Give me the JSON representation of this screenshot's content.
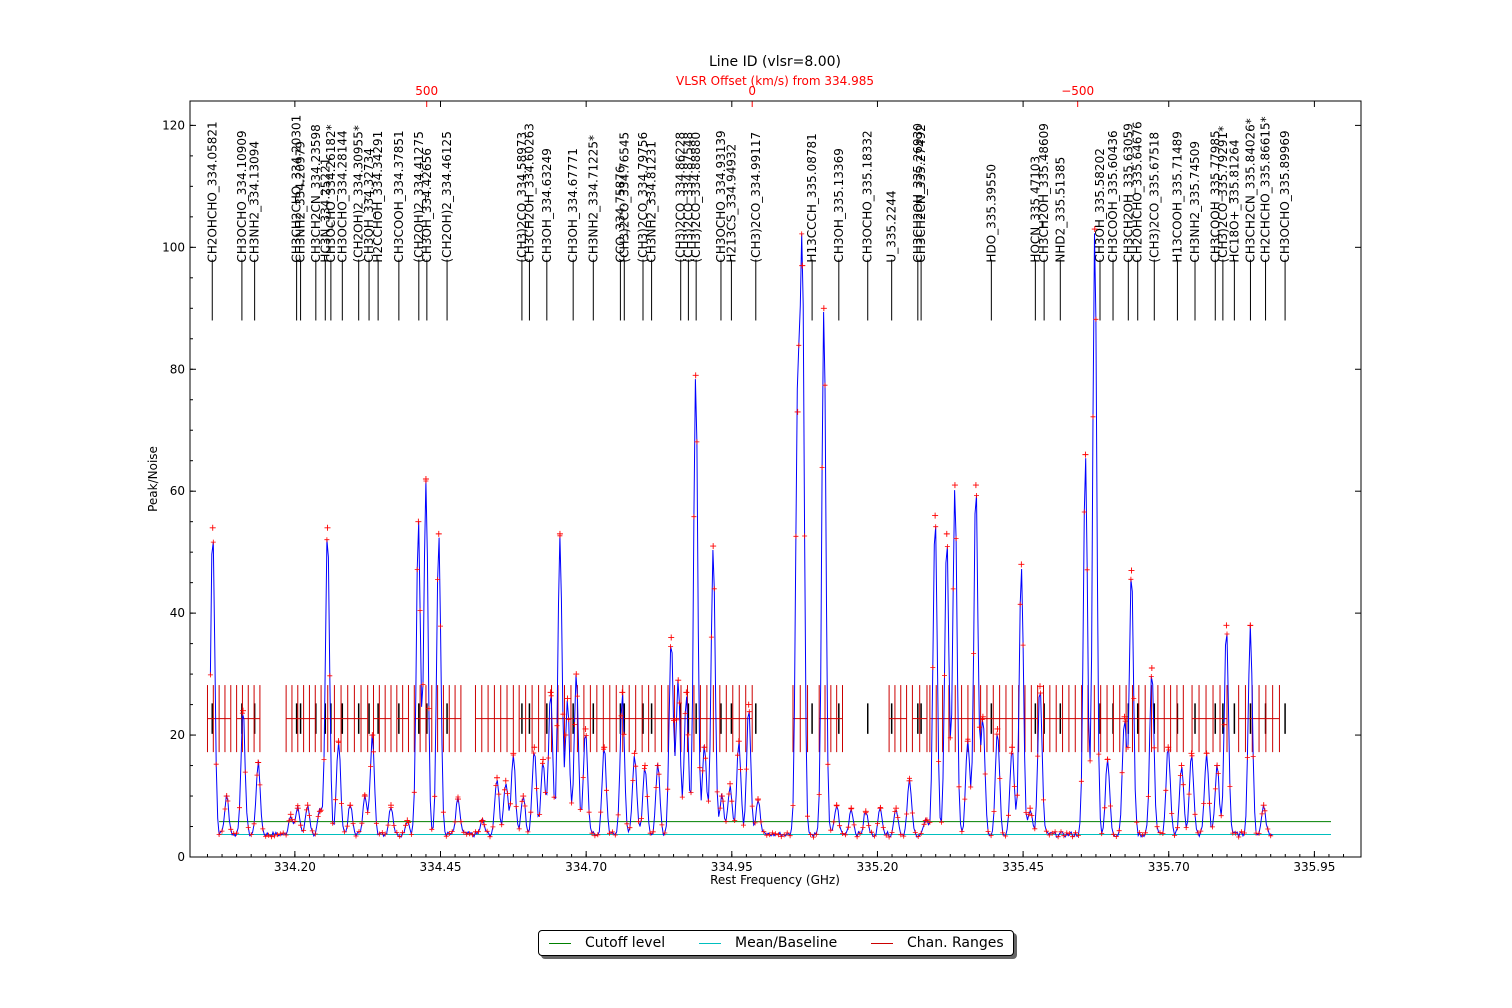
{
  "chart_data": {
    "type": "line",
    "title": "Line ID (vlsr=8.00)",
    "top_axis_label": "VLSR Offset (km/s) from 334.985",
    "top_axis_ticks": [
      500,
      0,
      -500
    ],
    "top_axis_tick_labels": [
      "500",
      "0",
      "−500"
    ],
    "xlabel": "Rest Frequency (GHz)",
    "ylabel": "Peak/Noise",
    "xlim": [
      334.02,
      336.03
    ],
    "ylim": [
      0,
      124
    ],
    "x_ticks": [
      334.2,
      334.45,
      334.7,
      334.95,
      335.2,
      335.45,
      335.7,
      335.95
    ],
    "x_tick_labels": [
      "334.20",
      "334.45",
      "334.70",
      "334.95",
      "335.20",
      "335.45",
      "335.70",
      "335.95"
    ],
    "y_ticks": [
      0,
      20,
      40,
      60,
      80,
      100,
      120
    ],
    "y_tick_labels": [
      "0",
      "20",
      "40",
      "60",
      "80",
      "100",
      "120"
    ],
    "colors": {
      "spectrum": "#0000ff",
      "markers": "#ff0000",
      "cutoff": "#008000",
      "baseline": "#00bfbf",
      "ranges": "#cc0000",
      "top_axis": "#ff0000",
      "line_marks": "#000000"
    },
    "cutoff_level": 5.8,
    "baseline_level": 3.7,
    "channel_range_level": 22.7,
    "spectrum_noise_level": 3.7,
    "peaks": [
      {
        "x": 334.059,
        "y": 54
      },
      {
        "x": 334.083,
        "y": 10
      },
      {
        "x": 334.111,
        "y": 24
      },
      {
        "x": 334.137,
        "y": 15.5
      },
      {
        "x": 334.193,
        "y": 7
      },
      {
        "x": 334.205,
        "y": 8
      },
      {
        "x": 334.222,
        "y": 8.5
      },
      {
        "x": 334.243,
        "y": 7.5
      },
      {
        "x": 334.256,
        "y": 54
      },
      {
        "x": 334.275,
        "y": 19
      },
      {
        "x": 334.295,
        "y": 8.5
      },
      {
        "x": 334.32,
        "y": 10
      },
      {
        "x": 334.333,
        "y": 20
      },
      {
        "x": 334.365,
        "y": 8.5
      },
      {
        "x": 334.393,
        "y": 6
      },
      {
        "x": 334.412,
        "y": 55
      },
      {
        "x": 334.425,
        "y": 62
      },
      {
        "x": 334.447,
        "y": 53
      },
      {
        "x": 334.48,
        "y": 9.5
      },
      {
        "x": 334.522,
        "y": 6
      },
      {
        "x": 334.547,
        "y": 13
      },
      {
        "x": 334.562,
        "y": 12.5
      },
      {
        "x": 334.575,
        "y": 17
      },
      {
        "x": 334.592,
        "y": 10
      },
      {
        "x": 334.611,
        "y": 18
      },
      {
        "x": 334.626,
        "y": 16
      },
      {
        "x": 334.639,
        "y": 27
      },
      {
        "x": 334.655,
        "y": 53
      },
      {
        "x": 334.668,
        "y": 26
      },
      {
        "x": 334.683,
        "y": 30
      },
      {
        "x": 334.699,
        "y": 21
      },
      {
        "x": 334.731,
        "y": 18
      },
      {
        "x": 334.762,
        "y": 27
      },
      {
        "x": 334.783,
        "y": 17
      },
      {
        "x": 334.801,
        "y": 15
      },
      {
        "x": 334.823,
        "y": 15
      },
      {
        "x": 334.846,
        "y": 36
      },
      {
        "x": 334.858,
        "y": 29
      },
      {
        "x": 334.872,
        "y": 27
      },
      {
        "x": 334.888,
        "y": 79
      },
      {
        "x": 334.903,
        "y": 18
      },
      {
        "x": 334.918,
        "y": 51
      },
      {
        "x": 334.933,
        "y": 10
      },
      {
        "x": 334.947,
        "y": 12
      },
      {
        "x": 334.962,
        "y": 19
      },
      {
        "x": 334.979,
        "y": 25
      },
      {
        "x": 334.995,
        "y": 9.5
      },
      {
        "x": 335.063,
        "y": 73
      },
      {
        "x": 335.071,
        "y": 97
      },
      {
        "x": 335.108,
        "y": 90
      },
      {
        "x": 335.13,
        "y": 8.5
      },
      {
        "x": 335.155,
        "y": 8
      },
      {
        "x": 335.18,
        "y": 7.5
      },
      {
        "x": 335.205,
        "y": 8
      },
      {
        "x": 335.232,
        "y": 8
      },
      {
        "x": 335.255,
        "y": 12.5
      },
      {
        "x": 335.283,
        "y": 6
      },
      {
        "x": 335.299,
        "y": 56
      },
      {
        "x": 335.319,
        "y": 53
      },
      {
        "x": 335.333,
        "y": 61
      },
      {
        "x": 335.355,
        "y": 19
      },
      {
        "x": 335.369,
        "y": 61
      },
      {
        "x": 335.381,
        "y": 23
      },
      {
        "x": 335.406,
        "y": 21
      },
      {
        "x": 335.431,
        "y": 18
      },
      {
        "x": 335.447,
        "y": 48
      },
      {
        "x": 335.462,
        "y": 8
      },
      {
        "x": 335.479,
        "y": 28
      },
      {
        "x": 335.557,
        "y": 66
      },
      {
        "x": 335.573,
        "y": 103
      },
      {
        "x": 335.595,
        "y": 16
      },
      {
        "x": 335.624,
        "y": 23
      },
      {
        "x": 335.636,
        "y": 47
      },
      {
        "x": 335.671,
        "y": 31
      },
      {
        "x": 335.699,
        "y": 18
      },
      {
        "x": 335.722,
        "y": 15
      },
      {
        "x": 335.739,
        "y": 17
      },
      {
        "x": 335.765,
        "y": 17
      },
      {
        "x": 335.783,
        "y": 15
      },
      {
        "x": 335.799,
        "y": 38
      },
      {
        "x": 335.84,
        "y": 38
      },
      {
        "x": 335.863,
        "y": 8.5
      }
    ],
    "line_ids": [
      {
        "label": "CH2OHCHO_334.05821",
        "x": 334.05821
      },
      {
        "label": "CH3OCHO_334.10909",
        "x": 334.10909
      },
      {
        "label": "CH3NH2_334.13094",
        "x": 334.13094
      },
      {
        "label": "CH3CH2CHO_334.20301",
        "x": 334.20301
      },
      {
        "label": "CH3NH2_334.20979",
        "x": 334.20979
      },
      {
        "label": "CH3CH2CN_334.23598",
        "x": 334.23598
      },
      {
        "label": "HC3N_334.25221",
        "x": 334.25221
      },
      {
        "label": "CH3OCHO_334.26182*",
        "x": 334.26182
      },
      {
        "label": "CH3OCHO_334.28144",
        "x": 334.28144
      },
      {
        "label": "(CH2OH)2_334.30955*",
        "x": 334.30955
      },
      {
        "label": "CH3OH_334.32734",
        "x": 334.32734
      },
      {
        "label": "H2CCHOH_334.34291",
        "x": 334.34291
      },
      {
        "label": "CH3COOH_334.37851",
        "x": 334.37851
      },
      {
        "label": "(CH2OH)2_334.41275",
        "x": 334.41275
      },
      {
        "label": "CH3OH_334.42656",
        "x": 334.42656
      },
      {
        "label": "(CH2OH)2_334.46125",
        "x": 334.46125
      },
      {
        "label": "(CH3)2CO_334.58973",
        "x": 334.58973
      },
      {
        "label": "CH3CH2OH_334.60263",
        "x": 334.60263
      },
      {
        "label": "CH3OH_334.63249",
        "x": 334.63249
      },
      {
        "label": "CH3OH_334.67771",
        "x": 334.67771
      },
      {
        "label": "CH3NH2_334.71225*",
        "x": 334.71225
      },
      {
        "label": "CCO_334.75876",
        "x": 334.75876
      },
      {
        "label": "(CH3)2CO_334.76545",
        "x": 334.76545
      },
      {
        "label": "(CH3)2CO_334.79756",
        "x": 334.79756
      },
      {
        "label": "CH3NH2_334.81231",
        "x": 334.81231
      },
      {
        "label": "(CH3)2CO_334.86228",
        "x": 334.86228
      },
      {
        "label": "(CH3)2CO_334.87548",
        "x": 334.87548
      },
      {
        "label": "(CH3)2CO_334.88880",
        "x": 334.8888
      },
      {
        "label": "CH3OCHO_334.93139",
        "x": 334.93139
      },
      {
        "label": "H213CS_334.94932",
        "x": 334.94932
      },
      {
        "label": "(CH3)2CO_334.99117",
        "x": 334.99117
      },
      {
        "label": "H13CCCH_335.08781",
        "x": 335.08781
      },
      {
        "label": "CH3OH_335.13369",
        "x": 335.13369
      },
      {
        "label": "CH3OCHO_335.18332",
        "x": 335.18332
      },
      {
        "label": "U_335.2244",
        "x": 335.2244
      },
      {
        "label": "CH3CH2OH_335.26930",
        "x": 335.2693
      },
      {
        "label": "CH3CH2CN_335.27492",
        "x": 335.27492
      },
      {
        "label": "HDO_335.39550",
        "x": 335.3955
      },
      {
        "label": "HOCN_335.47103",
        "x": 335.47103
      },
      {
        "label": "CH3CH2OH_335.48609",
        "x": 335.48609
      },
      {
        "label": "NHD2_335.51385",
        "x": 335.51385
      },
      {
        "label": "CH3OH_335.58202",
        "x": 335.58202
      },
      {
        "label": "CH3COOH_335.60436",
        "x": 335.60436
      },
      {
        "label": "CH3CH2OH_335.63059",
        "x": 335.63059
      },
      {
        "label": "CH2OHCHO_335.64676",
        "x": 335.64676
      },
      {
        "label": "(CH3)2CO_335.67518",
        "x": 335.67518
      },
      {
        "label": "H13COOH_335.71489",
        "x": 335.71489
      },
      {
        "label": "CH3NH2_335.74509",
        "x": 335.74509
      },
      {
        "label": "CH3COOH_335.77985",
        "x": 335.77985
      },
      {
        "label": "(CH3)2CO_335.79291*",
        "x": 335.79291
      },
      {
        "label": "HC18O+_335.81264",
        "x": 335.81264
      },
      {
        "label": "CH3CH2CN_335.84026*",
        "x": 335.84026
      },
      {
        "label": "CH2CHCHO_335.86615*",
        "x": 335.86615
      },
      {
        "label": "CH3OCHO_335.89969",
        "x": 335.89969
      }
    ],
    "channel_ranges": [
      [
        334.05,
        334.09
      ],
      [
        334.1,
        334.14
      ],
      [
        334.185,
        334.235
      ],
      [
        334.245,
        334.325
      ],
      [
        334.335,
        334.365
      ],
      [
        334.375,
        334.395
      ],
      [
        334.405,
        334.435
      ],
      [
        334.445,
        334.485
      ],
      [
        334.51,
        334.575
      ],
      [
        334.585,
        334.985
      ],
      [
        335.055,
        335.08
      ],
      [
        335.1,
        335.14
      ],
      [
        335.22,
        335.25
      ],
      [
        335.26,
        335.285
      ],
      [
        335.29,
        335.475
      ],
      [
        335.485,
        335.725
      ],
      [
        335.74,
        335.8
      ],
      [
        335.82,
        335.89
      ]
    ],
    "legend": [
      "Cutoff level",
      "Mean/Baseline",
      "Chan. Ranges"
    ],
    "legend_position": "bottom-center"
  }
}
